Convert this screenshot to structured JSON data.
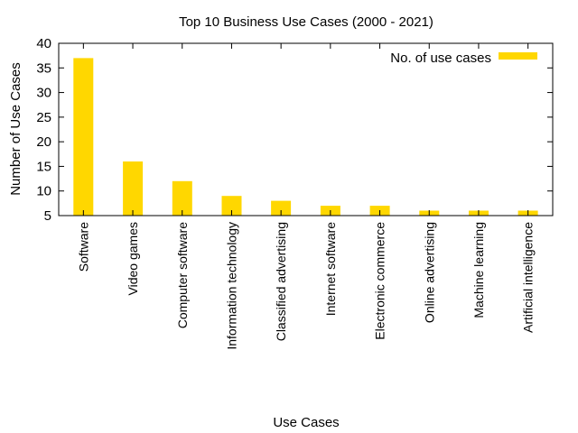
{
  "chart_data": {
    "type": "bar",
    "title": "Top 10 Business Use Cases (2000 - 2021)",
    "xlabel": "Use Cases",
    "ylabel": "Number of Use Cases",
    "categories": [
      "Software",
      "Video games",
      "Computer software",
      "Information technology",
      "Classified advertising",
      "Internet software",
      "Electronic commerce",
      "Online advertising",
      "Machine learning",
      "Artificial intelligence"
    ],
    "series": [
      {
        "name": "No. of use cases",
        "values": [
          37,
          16,
          12,
          9,
          8,
          7,
          7,
          6,
          6,
          6
        ],
        "color": "#ffd700"
      }
    ],
    "ylim": [
      5,
      40
    ],
    "yticks": [
      5,
      10,
      15,
      20,
      25,
      30,
      35,
      40
    ],
    "legend_position": "top-right",
    "grid": false
  }
}
